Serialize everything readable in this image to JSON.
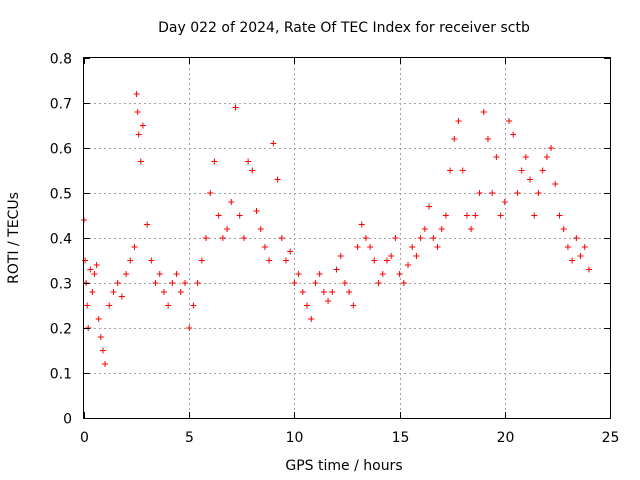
{
  "chart_data": {
    "type": "scatter",
    "title": "Day 022 of 2024, Rate Of TEC Index for receiver sctb",
    "xlabel": "GPS time / hours",
    "ylabel": "ROTI / TECUs",
    "xlim": [
      0,
      25
    ],
    "ylim": [
      0,
      0.8
    ],
    "x_ticks": [
      "0",
      "5",
      "10",
      "15",
      "20",
      "25"
    ],
    "y_ticks": [
      "0",
      "0.1",
      "0.2",
      "0.3",
      "0.4",
      "0.5",
      "0.6",
      "0.7",
      "0.8"
    ],
    "grid": true,
    "marker": "plus",
    "color": "#ff0000",
    "series": [
      {
        "x": [
          0.0,
          0.05,
          0.1,
          0.15,
          0.2,
          0.3,
          0.4,
          0.5,
          0.6,
          0.7,
          0.8,
          0.9,
          1.0,
          1.2,
          1.4,
          1.6,
          1.8,
          2.0,
          2.2,
          2.4,
          2.5,
          2.55,
          2.6,
          2.7,
          2.8,
          3.0,
          3.2,
          3.4,
          3.6,
          3.8,
          4.0,
          4.2,
          4.4,
          4.6,
          4.8,
          5.0,
          5.2,
          5.4,
          5.6,
          5.8,
          6.0,
          6.2,
          6.4,
          6.6,
          6.8,
          7.0,
          7.2,
          7.4,
          7.6,
          7.8,
          8.0,
          8.2,
          8.4,
          8.6,
          8.8,
          9.0,
          9.2,
          9.4,
          9.6,
          9.8,
          10.0,
          10.2,
          10.4,
          10.6,
          10.8,
          11.0,
          11.2,
          11.4,
          11.6,
          11.8,
          12.0,
          12.2,
          12.4,
          12.6,
          12.8,
          13.0,
          13.2,
          13.4,
          13.6,
          13.8,
          14.0,
          14.2,
          14.4,
          14.6,
          14.8,
          15.0,
          15.2,
          15.4,
          15.6,
          15.8,
          16.0,
          16.2,
          16.4,
          16.6,
          16.8,
          17.0,
          17.2,
          17.4,
          17.6,
          17.8,
          18.0,
          18.2,
          18.4,
          18.6,
          18.8,
          19.0,
          19.2,
          19.4,
          19.6,
          19.8,
          20.0,
          20.2,
          20.4,
          20.6,
          20.8,
          21.0,
          21.2,
          21.4,
          21.6,
          21.8,
          22.0,
          22.2,
          22.4,
          22.6,
          22.8,
          23.0,
          23.2,
          23.4,
          23.6,
          23.8,
          24.0
        ],
        "y": [
          0.44,
          0.35,
          0.3,
          0.25,
          0.2,
          0.33,
          0.28,
          0.32,
          0.34,
          0.22,
          0.18,
          0.15,
          0.12,
          0.25,
          0.28,
          0.3,
          0.27,
          0.32,
          0.35,
          0.38,
          0.72,
          0.68,
          0.63,
          0.57,
          0.65,
          0.43,
          0.35,
          0.3,
          0.32,
          0.28,
          0.25,
          0.3,
          0.32,
          0.28,
          0.3,
          0.2,
          0.25,
          0.3,
          0.35,
          0.4,
          0.5,
          0.57,
          0.45,
          0.4,
          0.42,
          0.48,
          0.69,
          0.45,
          0.4,
          0.57,
          0.55,
          0.46,
          0.42,
          0.38,
          0.35,
          0.61,
          0.53,
          0.4,
          0.35,
          0.37,
          0.3,
          0.32,
          0.28,
          0.25,
          0.22,
          0.3,
          0.32,
          0.28,
          0.26,
          0.28,
          0.33,
          0.36,
          0.3,
          0.28,
          0.25,
          0.38,
          0.43,
          0.4,
          0.38,
          0.35,
          0.3,
          0.32,
          0.35,
          0.36,
          0.4,
          0.32,
          0.3,
          0.34,
          0.38,
          0.36,
          0.4,
          0.42,
          0.47,
          0.4,
          0.38,
          0.42,
          0.45,
          0.55,
          0.62,
          0.66,
          0.55,
          0.45,
          0.42,
          0.45,
          0.5,
          0.68,
          0.62,
          0.5,
          0.58,
          0.45,
          0.48,
          0.66,
          0.63,
          0.5,
          0.55,
          0.58,
          0.53,
          0.45,
          0.5,
          0.55,
          0.58,
          0.6,
          0.52,
          0.45,
          0.42,
          0.38,
          0.35,
          0.4,
          0.36,
          0.38,
          0.33
        ]
      }
    ]
  }
}
